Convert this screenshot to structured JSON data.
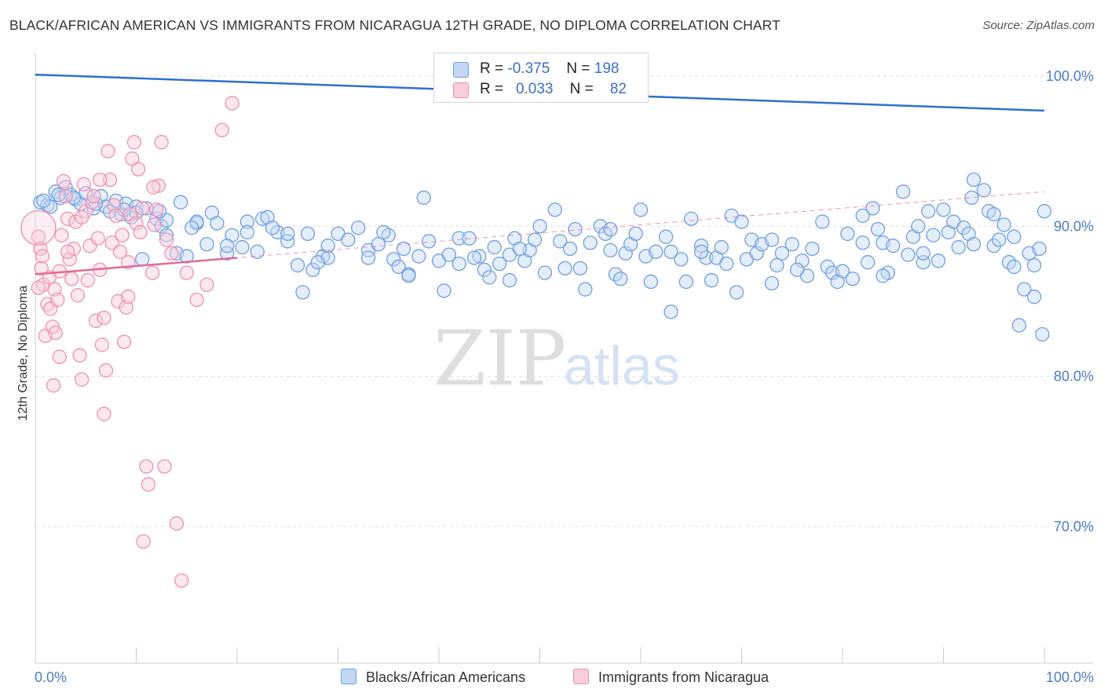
{
  "title": "BLACK/AFRICAN AMERICAN VS IMMIGRANTS FROM NICARAGUA 12TH GRADE, NO DIPLOMA CORRELATION CHART",
  "source": "Source: ZipAtlas.com",
  "watermark": {
    "zip": "ZIP",
    "atlas": "atlas"
  },
  "colors": {
    "blue": "#6f9fe0",
    "blue_fill": "#c3d7f3",
    "blue_line": "#2f6fd0",
    "pink": "#ee90b0",
    "pink_fill": "#f8cddc",
    "pink_line": "#e06a98",
    "tick": "#4a7cc9"
  },
  "legend": {
    "row1": {
      "r_label": "R =",
      "r_value": "-0.375",
      "n_label": "N =",
      "n_value": "198"
    },
    "row2": {
      "r_label": "R =",
      "r_value": "0.033",
      "n_label": "N =",
      "n_value": "82"
    }
  },
  "bottom_legend": {
    "blue": "Blacks/African Americans",
    "pink": "Immigrants from Nicaragua"
  },
  "chart_data": {
    "type": "scatter",
    "title": "BLACK/AFRICAN AMERICAN VS IMMIGRANTS FROM NICARAGUA 12TH GRADE, NO DIPLOMA CORRELATION CHART",
    "xlabel": "",
    "ylabel": "12th Grade, No Diploma",
    "xlim": [
      0,
      100
    ],
    "ylim": [
      61.5,
      102
    ],
    "x_tick_labels": [
      "0.0%",
      "100.0%"
    ],
    "y_ticks": [
      100,
      90,
      80,
      70
    ],
    "y_tick_labels": [
      "100.0%",
      "90.0%",
      "80.0%",
      "70.0%"
    ],
    "grid": "horizontal dashed",
    "series": [
      {
        "name": "Blacks/African Americans",
        "color": "#6f9fe0",
        "trend": {
          "x": [
            0,
            100
          ],
          "y": [
            100.1,
            97.7
          ]
        },
        "points": [
          [
            0.5,
            91.6
          ],
          [
            1.2,
            91.4
          ],
          [
            2,
            92.3
          ],
          [
            2.5,
            91.9
          ],
          [
            3,
            92.6
          ],
          [
            3.5,
            92.1
          ],
          [
            4,
            91.8
          ],
          [
            4.5,
            91.5
          ],
          [
            5,
            92.2
          ],
          [
            5.8,
            91.2
          ],
          [
            6.5,
            92.0
          ],
          [
            7,
            91.3
          ],
          [
            7.4,
            91.0
          ],
          [
            8,
            91.7
          ],
          [
            8.5,
            90.8
          ],
          [
            9,
            91.5
          ],
          [
            9.5,
            90.6
          ],
          [
            10,
            91.3
          ],
          [
            10.6,
            87.8
          ],
          [
            11,
            91.2
          ],
          [
            12,
            90.5
          ],
          [
            12.5,
            90.0
          ],
          [
            13,
            90.4
          ],
          [
            14,
            88.2
          ],
          [
            14.4,
            91.6
          ],
          [
            15,
            88.0
          ],
          [
            16,
            90.2
          ],
          [
            17,
            88.8
          ],
          [
            17.5,
            90.9
          ],
          [
            18,
            90.2
          ],
          [
            19,
            88.2
          ],
          [
            19.5,
            89.4
          ],
          [
            20.5,
            88.6
          ],
          [
            21,
            90.3
          ],
          [
            22,
            88.3
          ],
          [
            22.5,
            90.5
          ],
          [
            23,
            90.6
          ],
          [
            24,
            89.6
          ],
          [
            25,
            89.0
          ],
          [
            26,
            87.4
          ],
          [
            26.5,
            85.6
          ],
          [
            27,
            89.5
          ],
          [
            27.5,
            87.1
          ],
          [
            28.5,
            88.0
          ],
          [
            29,
            87.9
          ],
          [
            30,
            89.5
          ],
          [
            31,
            89.1
          ],
          [
            32,
            89.9
          ],
          [
            33,
            88.4
          ],
          [
            34,
            88.8
          ],
          [
            35,
            89.4
          ],
          [
            35.5,
            87.8
          ],
          [
            36,
            87.3
          ],
          [
            36.5,
            88.5
          ],
          [
            37,
            86.8
          ],
          [
            38,
            88.0
          ],
          [
            39,
            89.0
          ],
          [
            40,
            87.7
          ],
          [
            41,
            88.1
          ],
          [
            42,
            89.2
          ],
          [
            43,
            89.2
          ],
          [
            44,
            88.0
          ],
          [
            44.5,
            87.1
          ],
          [
            45,
            86.6
          ],
          [
            45.5,
            88.6
          ],
          [
            46,
            87.5
          ],
          [
            47,
            88.1
          ],
          [
            47.5,
            89.2
          ],
          [
            48.5,
            87.7
          ],
          [
            49,
            88.4
          ],
          [
            50,
            90.0
          ],
          [
            50.5,
            86.9
          ],
          [
            51.5,
            91.1
          ],
          [
            52,
            89.0
          ],
          [
            53,
            88.5
          ],
          [
            54,
            87.2
          ],
          [
            54.5,
            85.8
          ],
          [
            55,
            88.9
          ],
          [
            56,
            90.0
          ],
          [
            56.5,
            89.5
          ],
          [
            57,
            88.4
          ],
          [
            57.5,
            86.8
          ],
          [
            58.5,
            88.2
          ],
          [
            59,
            88.8
          ],
          [
            60,
            91.1
          ],
          [
            60.5,
            88.0
          ],
          [
            61,
            86.3
          ],
          [
            61.5,
            88.3
          ],
          [
            62.5,
            89.3
          ],
          [
            63,
            88.3
          ],
          [
            64,
            87.8
          ],
          [
            64.5,
            86.3
          ],
          [
            65,
            90.5
          ],
          [
            66,
            88.7
          ],
          [
            66.5,
            87.9
          ],
          [
            67,
            86.4
          ],
          [
            67.5,
            87.9
          ],
          [
            68,
            88.6
          ],
          [
            68.5,
            87.5
          ],
          [
            69,
            90.7
          ],
          [
            70,
            90.3
          ],
          [
            70.5,
            87.8
          ],
          [
            71,
            89.1
          ],
          [
            71.5,
            88.2
          ],
          [
            72,
            88.8
          ],
          [
            73,
            86.2
          ],
          [
            73.5,
            87.4
          ],
          [
            74,
            88.2
          ],
          [
            75,
            88.8
          ],
          [
            76,
            87.7
          ],
          [
            76.5,
            86.7
          ],
          [
            77,
            88.5
          ],
          [
            78,
            90.3
          ],
          [
            78.5,
            87.3
          ],
          [
            79,
            86.9
          ],
          [
            80,
            87.0
          ],
          [
            80.5,
            89.5
          ],
          [
            81,
            86.5
          ],
          [
            82,
            88.9
          ],
          [
            82.5,
            87.6
          ],
          [
            83,
            91.2
          ],
          [
            83.5,
            89.8
          ],
          [
            84,
            88.9
          ],
          [
            84.5,
            86.9
          ],
          [
            85,
            88.7
          ],
          [
            86,
            92.3
          ],
          [
            86.5,
            88.1
          ],
          [
            87,
            89.3
          ],
          [
            87.5,
            90.0
          ],
          [
            88,
            87.6
          ],
          [
            88.5,
            91.0
          ],
          [
            89,
            89.4
          ],
          [
            89.5,
            87.7
          ],
          [
            90,
            91.1
          ],
          [
            90.5,
            89.6
          ],
          [
            91,
            90.3
          ],
          [
            92,
            89.9
          ],
          [
            92.5,
            89.5
          ],
          [
            93,
            88.8
          ],
          [
            94,
            92.4
          ],
          [
            94.5,
            91.0
          ],
          [
            95,
            88.7
          ],
          [
            95.5,
            89.1
          ],
          [
            96,
            90.1
          ],
          [
            96.5,
            87.6
          ],
          [
            97,
            89.3
          ],
          [
            98,
            85.8
          ],
          [
            98.5,
            88.2
          ],
          [
            99,
            87.4
          ],
          [
            99.5,
            88.5
          ],
          [
            100,
            91.0
          ],
          [
            97.5,
            83.4
          ],
          [
            99.8,
            82.8
          ],
          [
            63,
            84.3
          ],
          [
            40.5,
            85.7
          ],
          [
            47,
            86.4
          ],
          [
            52.5,
            87.2
          ],
          [
            58,
            86.5
          ],
          [
            69.5,
            85.6
          ],
          [
            75.5,
            87.1
          ],
          [
            79.5,
            86.3
          ],
          [
            84,
            86.7
          ],
          [
            91.5,
            88.6
          ],
          [
            95,
            90.8
          ],
          [
            97,
            87.3
          ],
          [
            99,
            85.3
          ],
          [
            92.8,
            91.9
          ],
          [
            93,
            93.1
          ],
          [
            88,
            88.2
          ],
          [
            82,
            90.7
          ],
          [
            73,
            89.1
          ],
          [
            66,
            88.3
          ],
          [
            57,
            89.8
          ],
          [
            48,
            88.5
          ],
          [
            42,
            87.5
          ],
          [
            37,
            86.7
          ],
          [
            33,
            87.9
          ],
          [
            29,
            88.7
          ],
          [
            25,
            89.5
          ],
          [
            21,
            89.6
          ],
          [
            16,
            90.3
          ],
          [
            13,
            89.4
          ],
          [
            10,
            90.9
          ],
          [
            6,
            91.5
          ],
          [
            3.8,
            91.9
          ],
          [
            2.3,
            92.1
          ],
          [
            1.5,
            91.3
          ],
          [
            0.8,
            91.7
          ],
          [
            8.8,
            91.1
          ],
          [
            12.3,
            91.0
          ],
          [
            15.5,
            89.9
          ],
          [
            19,
            88.7
          ],
          [
            23.5,
            89.9
          ],
          [
            28,
            87.6
          ],
          [
            34.5,
            89.6
          ],
          [
            38.5,
            91.9
          ],
          [
            43.5,
            87.9
          ],
          [
            49.5,
            89.1
          ],
          [
            53.5,
            89.8
          ],
          [
            59.5,
            89.5
          ]
        ]
      },
      {
        "name": "Immigrants from Nicaragua",
        "color": "#ee90b0",
        "trend": {
          "x": [
            0,
            20
          ],
          "y": [
            86.8,
            87.9
          ]
        },
        "dashed_ext": {
          "x": [
            0,
            100
          ],
          "y": [
            86.8,
            92.3
          ]
        },
        "points": [
          [
            0.3,
            89.3
          ],
          [
            0.5,
            88.5
          ],
          [
            0.7,
            88.0
          ],
          [
            0.8,
            86.1
          ],
          [
            1.0,
            82.7
          ],
          [
            1.2,
            84.8
          ],
          [
            1.4,
            86.6
          ],
          [
            1.5,
            84.5
          ],
          [
            1.7,
            83.3
          ],
          [
            1.9,
            85.8
          ],
          [
            2.0,
            82.9
          ],
          [
            2.2,
            85.1
          ],
          [
            2.4,
            87.0
          ],
          [
            2.6,
            89.4
          ],
          [
            2.8,
            93.0
          ],
          [
            3.0,
            92.0
          ],
          [
            3.2,
            90.5
          ],
          [
            3.4,
            87.8
          ],
          [
            3.6,
            86.5
          ],
          [
            3.8,
            88.5
          ],
          [
            4.0,
            90.3
          ],
          [
            4.2,
            85.4
          ],
          [
            4.4,
            81.4
          ],
          [
            4.6,
            79.8
          ],
          [
            4.8,
            92.8
          ],
          [
            5.0,
            91.0
          ],
          [
            5.2,
            86.4
          ],
          [
            5.4,
            88.7
          ],
          [
            5.6,
            91.6
          ],
          [
            5.8,
            92.0
          ],
          [
            6.0,
            83.7
          ],
          [
            6.2,
            89.2
          ],
          [
            6.4,
            87.1
          ],
          [
            6.6,
            82.1
          ],
          [
            6.8,
            83.9
          ],
          [
            7.0,
            80.4
          ],
          [
            7.2,
            95.0
          ],
          [
            7.4,
            93.1
          ],
          [
            7.6,
            88.9
          ],
          [
            7.8,
            91.4
          ],
          [
            8.0,
            90.7
          ],
          [
            8.2,
            85.0
          ],
          [
            8.4,
            88.3
          ],
          [
            8.6,
            89.4
          ],
          [
            8.8,
            82.3
          ],
          [
            9.0,
            84.6
          ],
          [
            9.2,
            87.6
          ],
          [
            9.4,
            90.8
          ],
          [
            9.6,
            94.5
          ],
          [
            9.8,
            95.6
          ],
          [
            10.0,
            90.2
          ],
          [
            10.2,
            93.8
          ],
          [
            10.4,
            89.6
          ],
          [
            10.6,
            91.2
          ],
          [
            11.0,
            74.0
          ],
          [
            11.2,
            72.8
          ],
          [
            11.6,
            86.9
          ],
          [
            11.8,
            90.1
          ],
          [
            12.0,
            91.1
          ],
          [
            12.2,
            92.7
          ],
          [
            12.5,
            95.6
          ],
          [
            13,
            89.1
          ],
          [
            13.5,
            88.2
          ],
          [
            14,
            70.2
          ],
          [
            14.5,
            66.4
          ],
          [
            15.0,
            86.9
          ],
          [
            16,
            85.1
          ],
          [
            17,
            86.1
          ],
          [
            18.5,
            96.4
          ],
          [
            19.5,
            98.2
          ],
          [
            6.4,
            93.1
          ],
          [
            9.2,
            85.3
          ],
          [
            2.4,
            81.3
          ],
          [
            0.3,
            85.9
          ],
          [
            0.6,
            87.2
          ],
          [
            1.8,
            79.4
          ],
          [
            3.2,
            88.3
          ],
          [
            4.6,
            90.6
          ],
          [
            6.8,
            77.5
          ],
          [
            10.7,
            69.0
          ],
          [
            11.7,
            92.6
          ],
          [
            12.8,
            74.0
          ]
        ]
      }
    ]
  }
}
